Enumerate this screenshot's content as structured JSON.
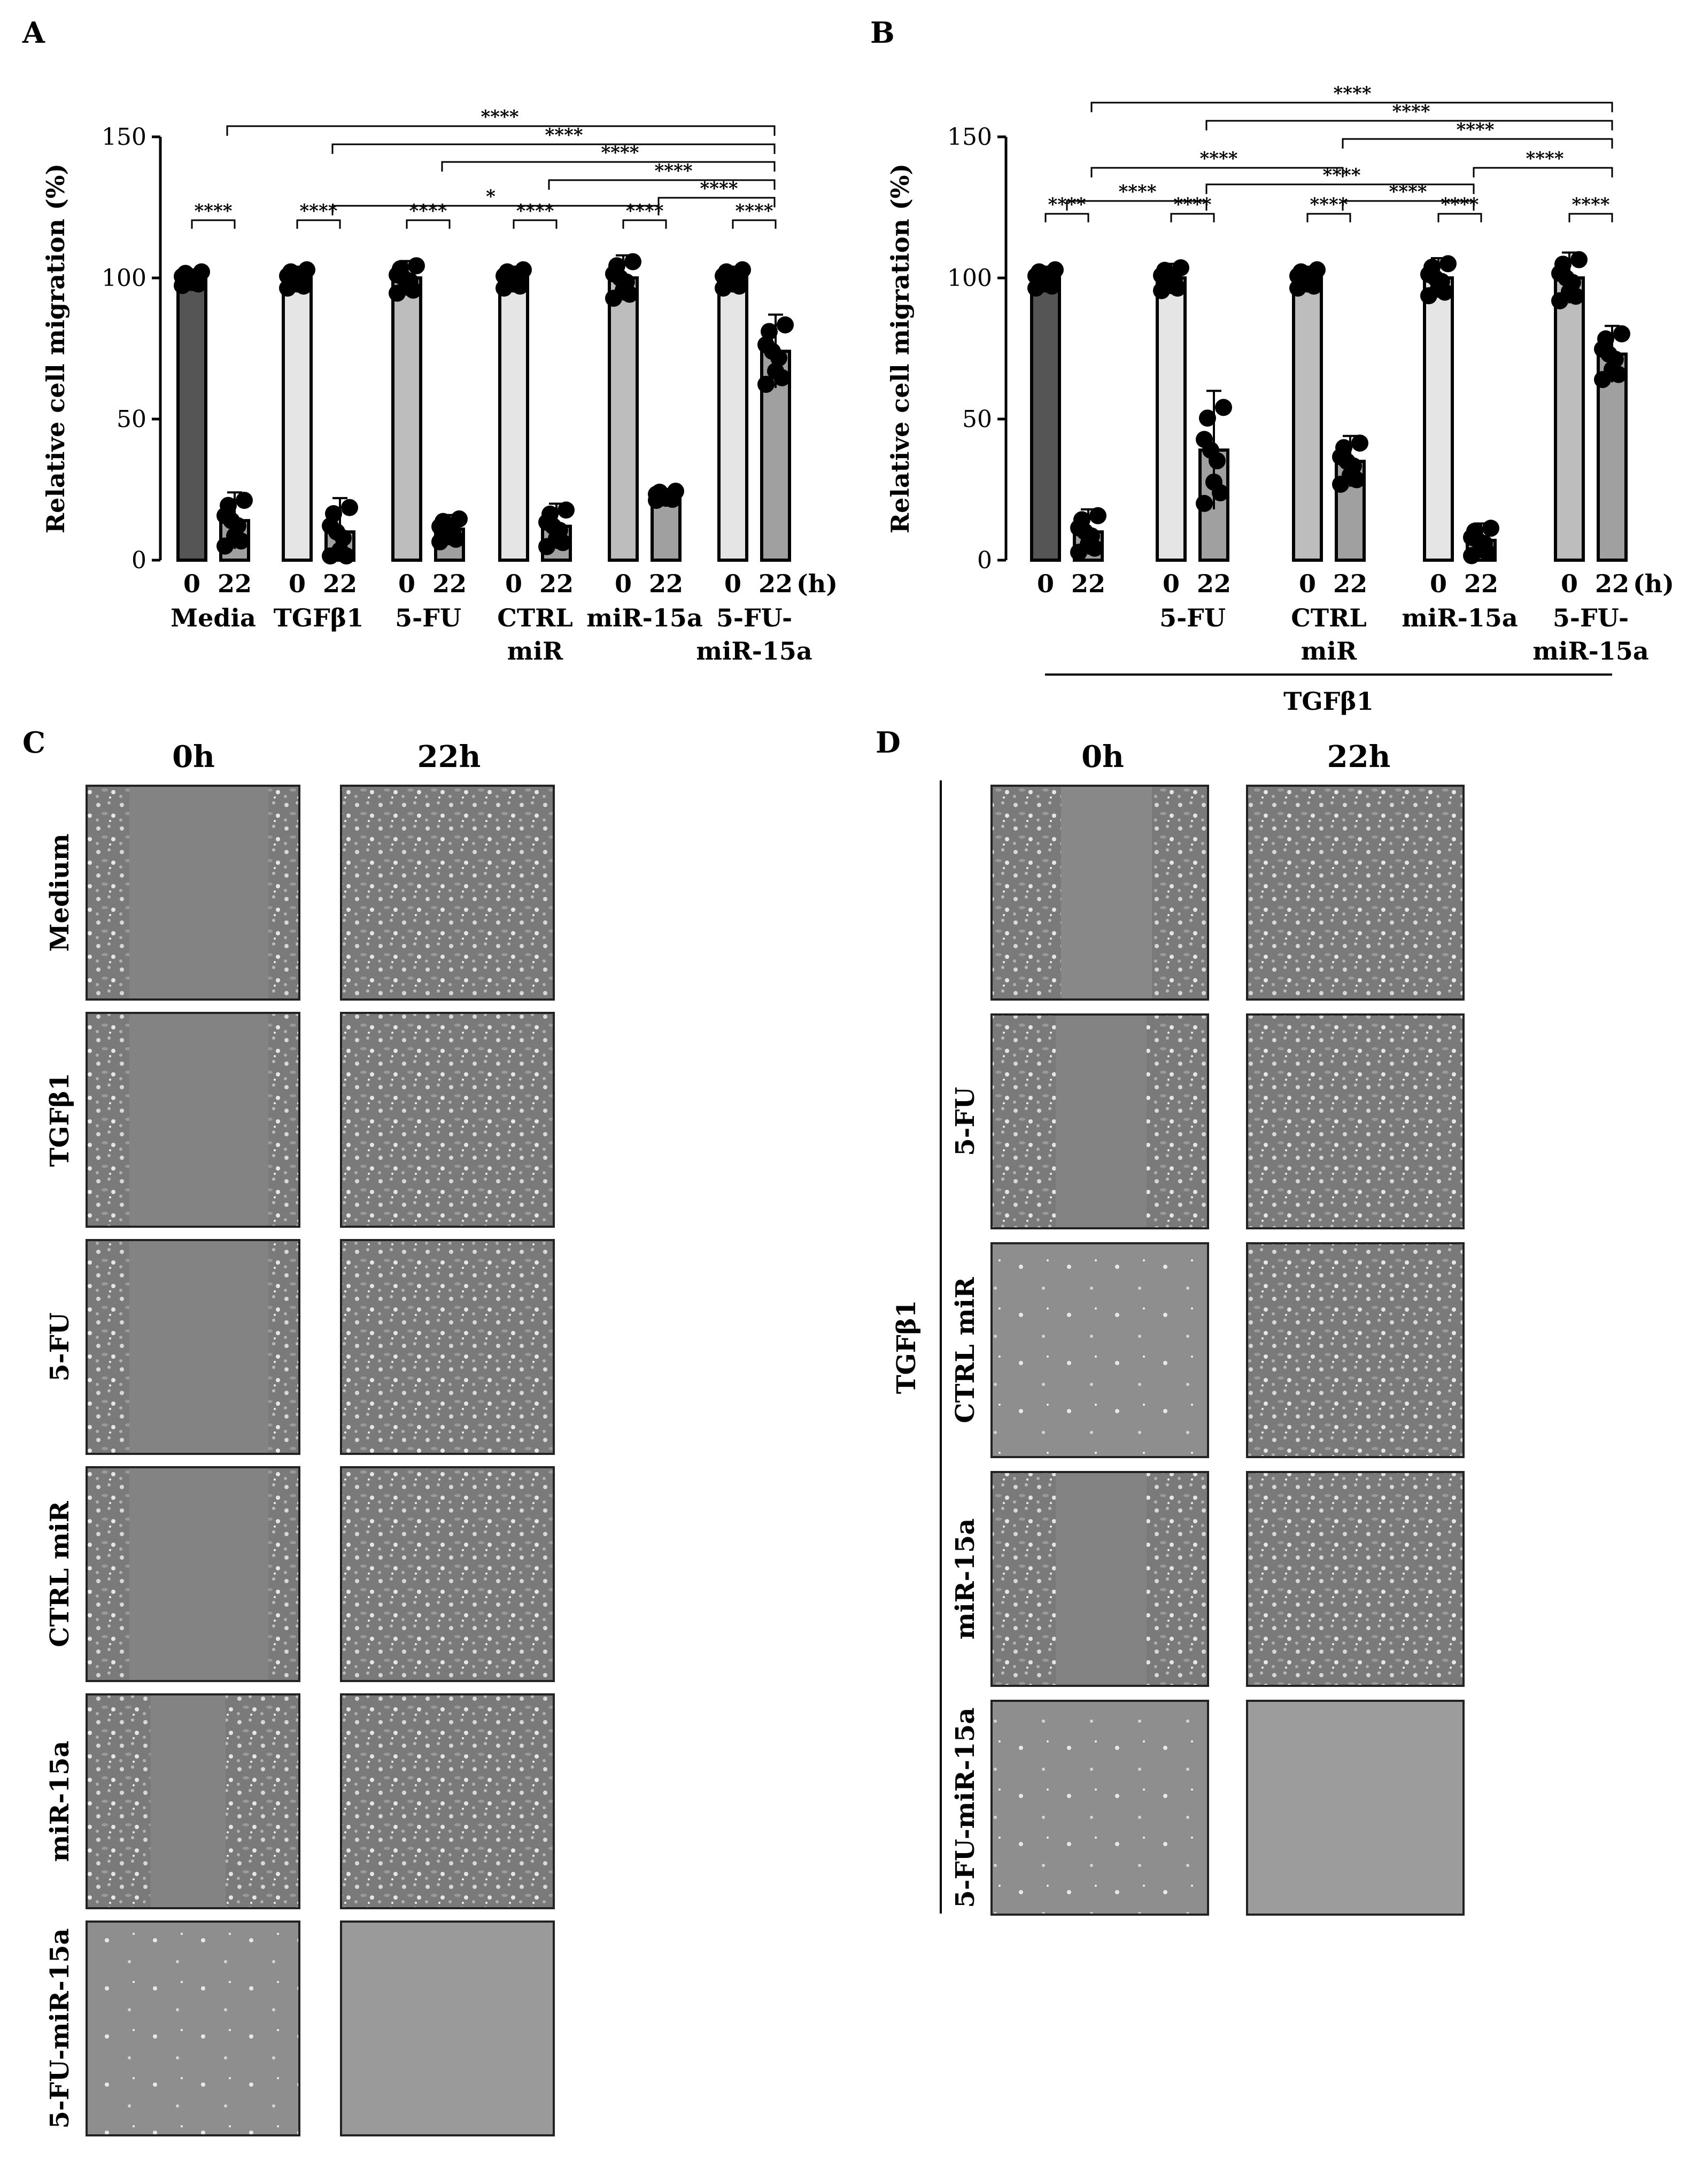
{
  "panels": {
    "A": "A",
    "B": "B",
    "C": "C",
    "D": "D"
  },
  "colors": {
    "bar0_dark": "#555555",
    "bar_light": "#e5e5e5",
    "bar_mid": "#bdbdbd",
    "bar22": "#a0a0a0",
    "dot": "#000000"
  },
  "chart_data": [
    {
      "panel": "A",
      "type": "bar",
      "ylabel": "Relative cell migration (%)",
      "ylim": [
        0,
        150
      ],
      "yticks": [
        0,
        50,
        100,
        150
      ],
      "time_unit": "(h)",
      "time_labels": [
        "0",
        "22"
      ],
      "groups": [
        {
          "label": "Media",
          "values": [
            100,
            14
          ],
          "errors": [
            3,
            10
          ]
        },
        {
          "label": "TGFβ1",
          "values": [
            100,
            10
          ],
          "errors": [
            4,
            12
          ]
        },
        {
          "label": "5-FU",
          "values": [
            100,
            11
          ],
          "errors": [
            6,
            5
          ]
        },
        {
          "label": "CTRL miR",
          "values": [
            100,
            12
          ],
          "errors": [
            4,
            8
          ]
        },
        {
          "label": "miR-15a",
          "values": [
            100,
            23
          ],
          "errors": [
            8,
            2
          ]
        },
        {
          "label": "5-FU-miR-15a",
          "values": [
            100,
            74
          ],
          "errors": [
            4,
            13
          ]
        }
      ],
      "within_group_significance": [
        "****",
        "****",
        "****",
        "****",
        "****",
        "****"
      ],
      "comparisons": [
        {
          "from": "Media",
          "to": "5-FU-miR-15a",
          "label": "****"
        },
        {
          "from": "TGFβ1",
          "to": "5-FU-miR-15a",
          "label": "****"
        },
        {
          "from": "5-FU",
          "to": "5-FU-miR-15a",
          "label": "****"
        },
        {
          "from": "CTRL miR",
          "to": "5-FU-miR-15a",
          "label": "****"
        },
        {
          "from": "miR-15a",
          "to": "5-FU-miR-15a",
          "label": "****"
        },
        {
          "from": "TGFβ1",
          "to": "5-FU-miR-15a",
          "label": "*"
        }
      ]
    },
    {
      "panel": "B",
      "type": "bar",
      "ylabel": "Relative cell migration (%)",
      "ylim": [
        0,
        150
      ],
      "yticks": [
        0,
        50,
        100,
        150
      ],
      "time_unit": "(h)",
      "time_labels": [
        "0",
        "22"
      ],
      "group_bracket_label": "TGFβ1",
      "groups": [
        {
          "label": "",
          "values": [
            100,
            10
          ],
          "errors": [
            4,
            8
          ]
        },
        {
          "label": "5-FU",
          "values": [
            100,
            39
          ],
          "errors": [
            5,
            21
          ]
        },
        {
          "label": "CTRL miR",
          "values": [
            100,
            35
          ],
          "errors": [
            4,
            9
          ]
        },
        {
          "label": "miR-15a",
          "values": [
            100,
            7
          ],
          "errors": [
            7,
            6
          ]
        },
        {
          "label": "5-FU-miR-15a",
          "values": [
            100,
            73
          ],
          "errors": [
            9,
            10
          ]
        }
      ],
      "within_group_significance": [
        "****",
        "****",
        "****",
        "****",
        "****"
      ],
      "comparisons": [
        {
          "from": "TGFβ1",
          "to": "5-FU-miR-15a",
          "label": "****"
        },
        {
          "from": "5-FU",
          "to": "5-FU-miR-15a",
          "label": "****"
        },
        {
          "from": "CTRL miR",
          "to": "5-FU-miR-15a",
          "label": "****"
        },
        {
          "from": "miR-15a",
          "to": "5-FU-miR-15a",
          "label": "****"
        },
        {
          "from": "TGFβ1",
          "to": "CTRL miR",
          "label": "****"
        },
        {
          "from": "5-FU",
          "to": "miR-15a",
          "label": "****"
        },
        {
          "from": "TGFβ1",
          "to": "5-FU",
          "label": "****"
        },
        {
          "from": "CTRL miR",
          "to": "miR-15a",
          "label": "****"
        }
      ]
    }
  ],
  "panel_C": {
    "columns": [
      "0h",
      "22h"
    ],
    "rows": [
      "Medium",
      "TGFβ1",
      "5-FU",
      "CTRL miR",
      "miR-15a",
      "5-FU-miR-15a"
    ]
  },
  "panel_D": {
    "columns": [
      "0h",
      "22h"
    ],
    "group_label": "TGFβ1",
    "rows": [
      "",
      "5-FU",
      "CTRL miR",
      "miR-15a",
      "5-FU-miR-15a"
    ]
  }
}
